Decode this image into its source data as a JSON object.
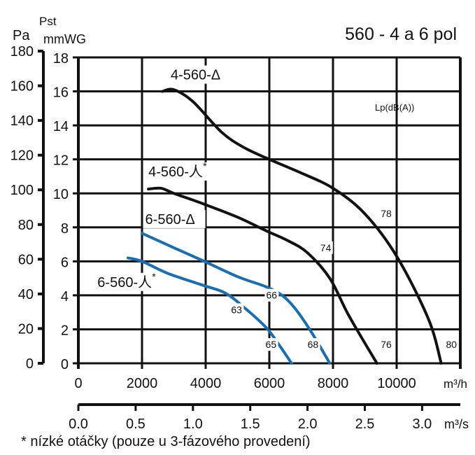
{
  "chart_data": {
    "type": "line",
    "title": "560 - 4 a 6 pol",
    "ylabel_top": "Pst",
    "ylabel_left": "Pa",
    "ylabel_right": "mmWG",
    "xlabel": "m³/h",
    "xlabel2": "m³/s",
    "noise_label": "Lp(dB(A))",
    "footnote": "* nízké otáčky (pouze u 3-fázového provedení)",
    "xlim": [
      0,
      12000
    ],
    "ylim": [
      0,
      18
    ],
    "pa_lim": [
      0,
      180
    ],
    "grid": true,
    "x_ticks": [
      "0",
      "2000",
      "4000",
      "6000",
      "8000",
      "10000"
    ],
    "x2_ticks": [
      "0.0",
      "0.5",
      "1.0",
      "1.5",
      "2.0",
      "2.5",
      "3.0"
    ],
    "y_ticks": [
      "0",
      "2",
      "4",
      "6",
      "8",
      "10",
      "12",
      "14",
      "16",
      "18"
    ],
    "pa_ticks": [
      "0",
      "20",
      "40",
      "60",
      "80",
      "100",
      "120",
      "140",
      "160",
      "180"
    ],
    "colors": {
      "black": "#111111",
      "blue": "#1a6db0"
    },
    "series": [
      {
        "name": "4-560-Δ",
        "sup": "",
        "color": "black",
        "x": [
          2640,
          3000,
          3600,
          4500,
          5200,
          6000,
          7000,
          8000,
          9000,
          10000,
          11000,
          11400
        ],
        "y": [
          16.0,
          16.1,
          15.4,
          13.6,
          12.7,
          12.0,
          11.2,
          10.3,
          8.8,
          6.3,
          2.6,
          0
        ],
        "label_at": [
          2900,
          16.7
        ]
      },
      {
        "name": "4-560-人",
        "sup": "*",
        "color": "black",
        "x": [
          2200,
          2600,
          3000,
          3900,
          5000,
          5900,
          6600,
          7200,
          7900,
          8500,
          9380
        ],
        "y": [
          10.25,
          10.3,
          10.0,
          9.4,
          8.6,
          7.8,
          7.2,
          6.5,
          5.0,
          2.8,
          0
        ],
        "label_at": [
          2200,
          11.0
        ]
      },
      {
        "name": "6-560-Δ",
        "sup": "",
        "color": "blue",
        "x": [
          2000,
          3000,
          3900,
          5000,
          5900,
          6400,
          6800,
          7300,
          7900
        ],
        "y": [
          7.65,
          6.8,
          6.05,
          5.1,
          4.5,
          4.0,
          3.25,
          1.9,
          0
        ],
        "label_at": [
          2100,
          8.2
        ]
      },
      {
        "name": "6-560-人",
        "sup": "*",
        "color": "blue",
        "x": [
          1560,
          2000,
          2800,
          3900,
          4600,
          5200,
          5900,
          6300,
          6700
        ],
        "y": [
          6.2,
          6.0,
          5.3,
          4.6,
          4.15,
          3.3,
          2.1,
          1.1,
          0
        ],
        "label_at": [
          600,
          4.5
        ]
      }
    ],
    "noise_values": [
      {
        "text": "78",
        "at": [
          9500,
          8.6
        ]
      },
      {
        "text": "74",
        "at": [
          7600,
          6.6
        ]
      },
      {
        "text": "76",
        "at": [
          9500,
          0.9
        ]
      },
      {
        "text": "80",
        "at": [
          11550,
          0.9
        ]
      },
      {
        "text": "66",
        "at": [
          5900,
          3.8
        ]
      },
      {
        "text": "63",
        "at": [
          4800,
          2.95
        ]
      },
      {
        "text": "65",
        "at": [
          5880,
          0.9
        ]
      },
      {
        "text": "68",
        "at": [
          7200,
          0.9
        ]
      }
    ]
  }
}
